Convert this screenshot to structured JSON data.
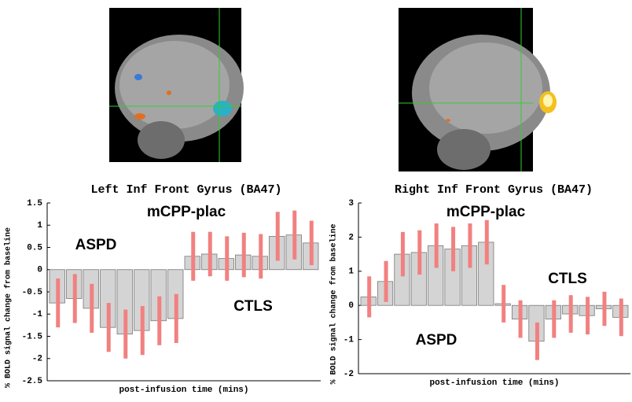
{
  "chart_data": [
    {
      "type": "bar",
      "title": "Left Inf Front Gyrus (BA47)",
      "x_label": "post-infusion time (mins)",
      "y_label": "% BOLD signal change from baseline",
      "values": [
        -0.75,
        -0.65,
        -0.87,
        -1.3,
        -1.45,
        -1.37,
        -1.15,
        -1.1,
        0.3,
        0.35,
        0.25,
        0.33,
        0.3,
        0.75,
        0.78,
        0.6
      ],
      "errors": [
        0.55,
        0.55,
        0.55,
        0.55,
        0.55,
        0.55,
        0.55,
        0.55,
        0.55,
        0.5,
        0.5,
        0.5,
        0.5,
        0.55,
        0.55,
        0.5
      ],
      "color": "#d4d4d4",
      "error_color": "#f28080",
      "ylim": [
        -2.5,
        1.5
      ],
      "yticks": [
        -2.5,
        -2,
        -1.5,
        -1,
        -0.5,
        0,
        0.5,
        1,
        1.5
      ],
      "annotations": [
        "mCPP-plac",
        "ASPD",
        "CTLS"
      ]
    },
    {
      "type": "bar",
      "title": "Right Inf Front Gyrus (BA47)",
      "x_label": "post-infusion time (mins)",
      "y_label": "% BOLD signal change from baseline",
      "values": [
        0.25,
        0.7,
        1.5,
        1.55,
        1.75,
        1.65,
        1.75,
        1.85,
        0.05,
        -0.4,
        -1.05,
        -0.4,
        -0.25,
        -0.3,
        -0.1,
        -0.35
      ],
      "errors": [
        0.6,
        0.6,
        0.65,
        0.65,
        0.65,
        0.65,
        0.65,
        0.65,
        0.55,
        0.55,
        0.55,
        0.55,
        0.55,
        0.55,
        0.5,
        0.55
      ],
      "color": "#d4d4d4",
      "error_color": "#f28080",
      "ylim": [
        -2,
        3
      ],
      "yticks": [
        -2,
        -1,
        0,
        1,
        2,
        3
      ],
      "annotations": [
        "mCPP-plac",
        "ASPD",
        "CTLS"
      ]
    }
  ]
}
